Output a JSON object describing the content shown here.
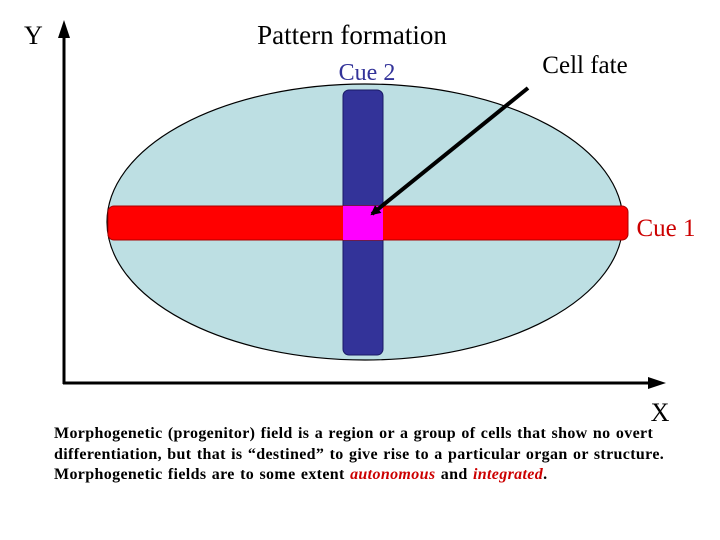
{
  "diagram": {
    "title": "Pattern formation",
    "axes": {
      "y_label": "Y",
      "x_label": "X"
    },
    "cue2_label": "Cue 2",
    "cue1_label": "Cue 1",
    "cell_fate_label": "Cell fate"
  },
  "caption": {
    "part1": "Morphogenetic (progenitor) field is a region or a group of cells that show no overt differentiation, but that is “destined” to give rise to a particular organ or structure.  Morphogenetic fields are to some extent ",
    "emphasis1": "autonomous",
    "part2": " and ",
    "emphasis2": "integrated",
    "part3": "."
  },
  "colors": {
    "field_fill": "#bddfe3",
    "cue1_band": "#ff0000",
    "cue2_band": "#333399",
    "intersection": "#ff00ff",
    "cue2_text": "#333399",
    "cue1_text": "#cc0000",
    "emphasis_text": "#cc0000"
  }
}
